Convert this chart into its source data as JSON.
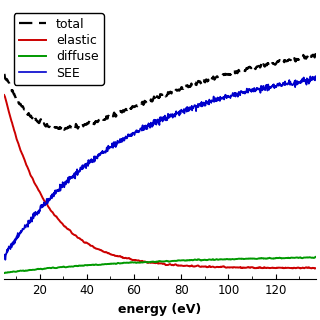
{
  "title": "",
  "xlabel": "energy (eV)",
  "ylabel": "",
  "xlim": [
    5,
    137
  ],
  "ylim": [
    -0.02,
    1.08
  ],
  "xticks": [
    20,
    40,
    60,
    80,
    100,
    120
  ],
  "legend_labels": [
    "total",
    "elastic",
    "diffuse",
    "SEE"
  ],
  "legend_colors": [
    "#000000",
    "#cc0000",
    "#009900",
    "#0000cc"
  ],
  "background_color": "#ffffff",
  "seed": 12345,
  "elastic_scale": 0.92,
  "elastic_tau": 18.0,
  "elastic_floor": 0.025,
  "diffuse_max": 0.075,
  "diffuse_tau": 60.0,
  "see_max": 0.85,
  "see_tau": 55.0,
  "see_noise_sigma": 0.006,
  "elastic_noise_sigma": 0.003,
  "diffuse_noise_sigma": 0.002,
  "total_noise_sigma": 0.003,
  "n_points": 800
}
